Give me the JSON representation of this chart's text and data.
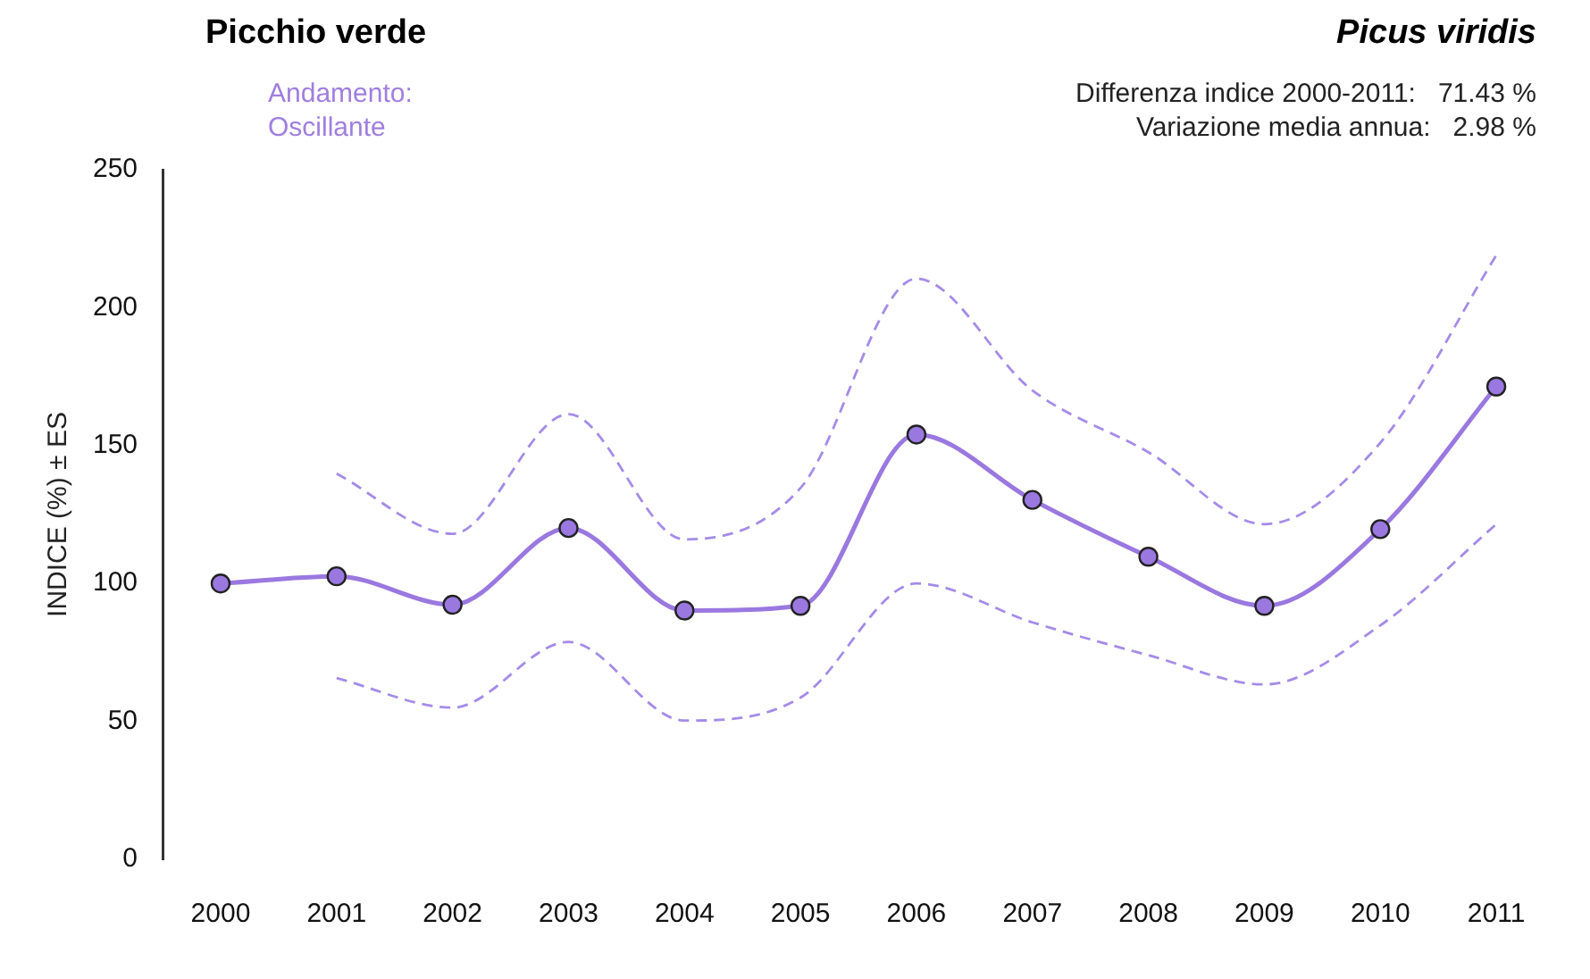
{
  "chart_data": {
    "type": "line",
    "title": "Picchio verde",
    "subtitle": "Picus viridis",
    "ylabel": "INDICE (%) ± ES",
    "annotations": [
      "Andamento:",
      "Oscillante",
      "Differenza indice 2000-2011:   71.43 %",
      "Variazione media annua:   2.98 %"
    ],
    "categories": [
      "2000",
      "2001",
      "2002",
      "2003",
      "2004",
      "2005",
      "2006",
      "2007",
      "2008",
      "2009",
      "2010",
      "2011"
    ],
    "series": [
      {
        "color": "#9a78e0",
        "values": [
          100,
          102.6,
          92.3,
          120.1,
          90.2,
          91.9,
          154,
          130.3,
          109.7,
          91.9,
          119.7,
          171.4
        ]
      },
      {
        "color": "#a58be8",
        "line_style": "dashed",
        "marker": "none",
        "values": [
          null,
          65.7,
          55,
          78.8,
          50.3,
          58.6,
          100,
          85.9,
          74,
          63.4,
          84.8,
          121.5
        ]
      },
      {
        "color": "#a58be8",
        "line_style": "dashed",
        "marker": "none",
        "values": [
          null,
          139.8,
          118,
          161.4,
          116,
          134.6,
          210.5,
          170,
          147.6,
          121.5,
          151,
          219
        ]
      }
    ],
    "ylim": [
      0,
      250
    ],
    "yticks": [
      0,
      50,
      100,
      150,
      200,
      250
    ],
    "grid": false,
    "legend": false,
    "marker": "circle",
    "line_style": "solid"
  }
}
